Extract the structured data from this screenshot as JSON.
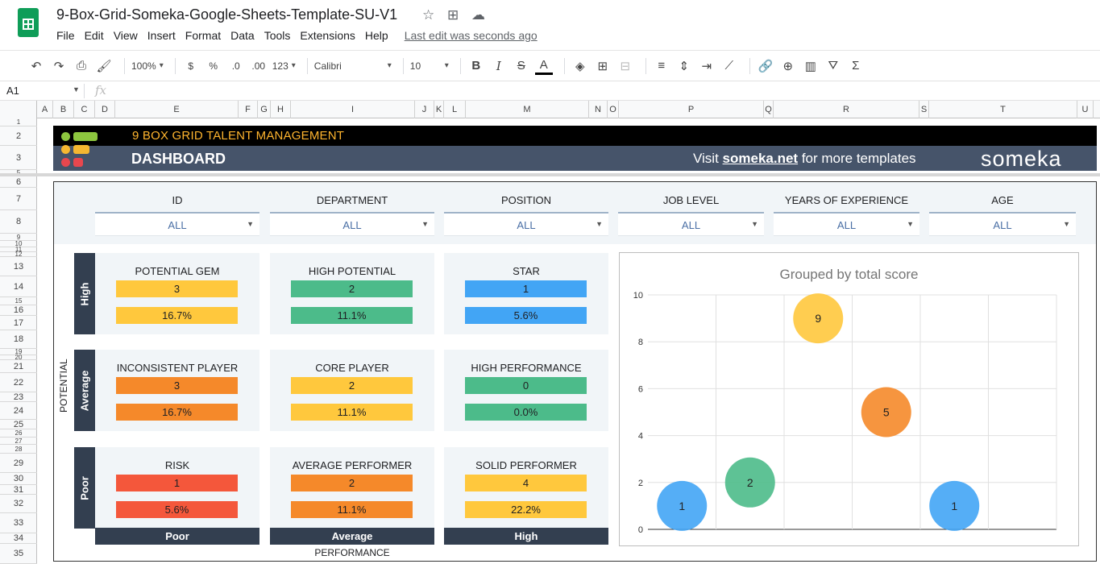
{
  "app": {
    "doc_title": "9-Box-Grid-Someka-Google-Sheets-Template-SU-V1",
    "menu": [
      "File",
      "Edit",
      "View",
      "Insert",
      "Format",
      "Data",
      "Tools",
      "Extensions",
      "Help"
    ],
    "last_edit": "Last edit was seconds ago"
  },
  "toolbar": {
    "zoom": "100%",
    "currency": "$",
    "percent": "%",
    "decrease_decimal": ".0",
    "increase_decimal": ".00",
    "more_formats": "123",
    "font": "Calibri",
    "font_size": "10",
    "bold": "B",
    "italic": "I",
    "strikethrough": "S",
    "text_color": "A"
  },
  "formula_bar": {
    "cell_ref": "A1",
    "fx": "fx"
  },
  "columns": [
    "A",
    "B",
    "C",
    "D",
    "E",
    "F",
    "G",
    "H",
    "I",
    "J",
    "K",
    "L",
    "M",
    "N",
    "O",
    "P",
    "Q",
    "R",
    "S",
    "T",
    "U"
  ],
  "rows": [
    "1",
    "2",
    "3",
    "5",
    "6",
    "7",
    "8",
    "9",
    "10",
    "11",
    "12",
    "13",
    "14",
    "15",
    "16",
    "17",
    "18",
    "19",
    "20",
    "21",
    "22",
    "23",
    "24",
    "25",
    "26",
    "27",
    "28",
    "29",
    "30",
    "31",
    "32",
    "33",
    "34",
    "35"
  ],
  "banner": {
    "title": "9 BOX GRID TALENT MANAGEMENT",
    "subtitle": "DASHBOARD",
    "visit_prefix": "Visit ",
    "visit_link": "someka.net",
    "visit_suffix": " for more templates",
    "logo": "someka",
    "logo_colors": {
      "green": "#8dc63f",
      "yellow": "#f5b731",
      "red": "#e8474e"
    }
  },
  "filters": [
    {
      "label": "ID",
      "value": "ALL"
    },
    {
      "label": "DEPARTMENT",
      "value": "ALL"
    },
    {
      "label": "POSITION",
      "value": "ALL"
    },
    {
      "label": "JOB LEVEL",
      "value": "ALL"
    },
    {
      "label": "YEARS OF EXPERIENCE",
      "value": "ALL"
    },
    {
      "label": "AGE",
      "value": "ALL"
    }
  ],
  "grid": {
    "potential_axis": "POTENTIAL",
    "performance_axis": "PERFORMANCE",
    "potential_levels": [
      "High",
      "Average",
      "Poor"
    ],
    "performance_levels": [
      "Poor",
      "Average",
      "High"
    ],
    "boxes": [
      {
        "title": "POTENTIAL GEM",
        "count": "3",
        "percent": "16.7%",
        "color": "#ffc83d"
      },
      {
        "title": "HIGH POTENTIAL",
        "count": "2",
        "percent": "11.1%",
        "color": "#4cbb8a"
      },
      {
        "title": "STAR",
        "count": "1",
        "percent": "5.6%",
        "color": "#42a5f5"
      },
      {
        "title": "INCONSISTENT PLAYER",
        "count": "3",
        "percent": "16.7%",
        "color": "#f5892a"
      },
      {
        "title": "CORE PLAYER",
        "count": "2",
        "percent": "11.1%",
        "color": "#ffc83d"
      },
      {
        "title": "HIGH PERFORMANCE",
        "count": "0",
        "percent": "0.0%",
        "color": "#4cbb8a"
      },
      {
        "title": "RISK",
        "count": "1",
        "percent": "5.6%",
        "color": "#f4573b"
      },
      {
        "title": "AVERAGE PERFORMER",
        "count": "2",
        "percent": "11.1%",
        "color": "#f5892a"
      },
      {
        "title": "SOLID PERFORMER",
        "count": "4",
        "percent": "22.2%",
        "color": "#ffc83d"
      }
    ]
  },
  "chart_data": {
    "type": "scatter",
    "title": "Grouped by total score",
    "xlim": [
      0,
      6
    ],
    "ylim": [
      0,
      10
    ],
    "yticks": [
      "0",
      "2",
      "4",
      "6",
      "8",
      "10"
    ],
    "points": [
      {
        "x": 0.5,
        "y": 1,
        "label": "1",
        "color": "#42a5f5"
      },
      {
        "x": 1.5,
        "y": 2,
        "label": "2",
        "color": "#4cbb8a"
      },
      {
        "x": 2.5,
        "y": 9,
        "label": "9",
        "color": "#ffc83d"
      },
      {
        "x": 3.5,
        "y": 5,
        "label": "5",
        "color": "#f5892a"
      },
      {
        "x": 4.5,
        "y": 1,
        "label": "1",
        "color": "#42a5f5"
      }
    ]
  }
}
